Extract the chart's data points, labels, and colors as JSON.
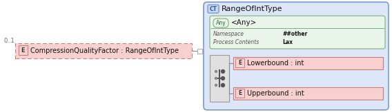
{
  "bg_color": "#ffffff",
  "main_element_label": "CompressionQualityFactor : RangeOfIntType",
  "e_badge_bg": "#f9d0d0",
  "e_badge_border": "#c08080",
  "e_badge_text": "E",
  "cardinality": "0..1",
  "ct_panel_bg": "#dde6f7",
  "ct_panel_border": "#7a9acc",
  "ct_label": "RangeOfIntType",
  "ct_badge_bg": "#c8d8f0",
  "ct_badge_border": "#7a9acc",
  "ct_badge_text": "CT",
  "any_box_bg": "#eaf5ea",
  "any_box_border": "#80aa80",
  "any_badge_text": "Any",
  "any_label": "<Any>",
  "namespace_label": "Namespace",
  "namespace_value": "##other",
  "process_label": "Process Contents",
  "process_value": "Lax",
  "seq_box_bg": "#e0e0e0",
  "seq_box_border": "#999999",
  "lower_label": "Lowerbound : int",
  "upper_label": "Upperbound : int",
  "element_bg": "#f9d0d0",
  "element_border": "#c08080",
  "line_color": "#888888",
  "connector_sq_bg": "#ffffff",
  "connector_sq_border": "#aaaaaa"
}
